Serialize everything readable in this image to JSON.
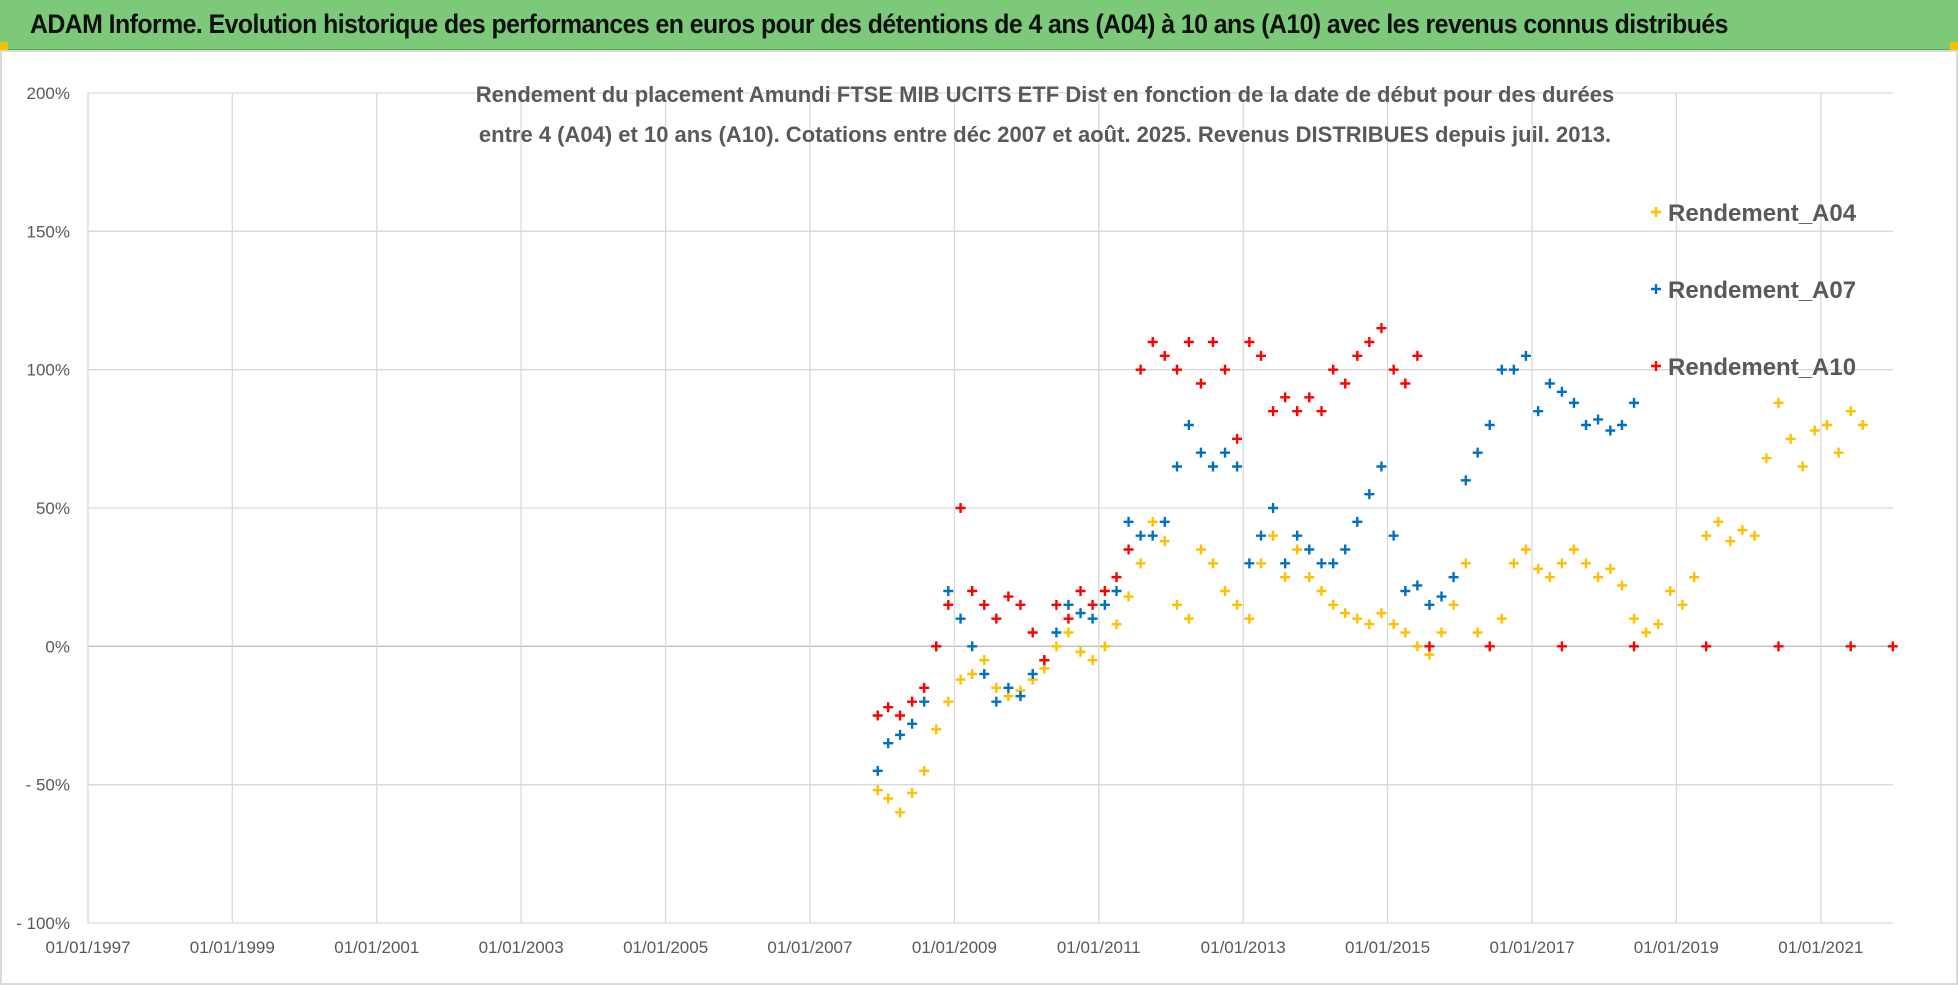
{
  "header": {
    "title": "ADAM Informe. Evolution historique des performances en euros pour des détentions de 4 ans (A04) à 10 ans (A10) avec les revenus connus distribués"
  },
  "chart_data": {
    "type": "scatter",
    "title_lines": [
      "Rendement du placement Amundi FTSE MIB UCITS ETF Dist en fonction de la date de début pour des durées",
      "entre 4 (A04) et 10 ans (A10). Cotations entre déc 2007 et août. 2025. Revenus DISTRIBUES depuis juil. 2013."
    ],
    "xlabel": "",
    "ylabel": "",
    "x_range": [
      "1997-01-01",
      "2022-01-01"
    ],
    "x_ticks": [
      "01/01/1997",
      "01/01/1999",
      "01/01/2001",
      "01/01/2003",
      "01/01/2005",
      "01/01/2007",
      "01/01/2009",
      "01/01/2011",
      "01/01/2013",
      "01/01/2015",
      "01/01/2017",
      "01/01/2019",
      "01/01/2021"
    ],
    "ylim": [
      -100,
      200
    ],
    "y_ticks": [
      {
        "value": 200,
        "label": "200%"
      },
      {
        "value": 150,
        "label": "150%"
      },
      {
        "value": 100,
        "label": "100%"
      },
      {
        "value": 50,
        "label": "50%"
      },
      {
        "value": 0,
        "label": "0%"
      },
      {
        "value": -50,
        "label": "- 50%"
      },
      {
        "value": -100,
        "label": "- 100%"
      }
    ],
    "grid": true,
    "legend_position": "top-right",
    "series": [
      {
        "name": "Rendement_A04",
        "color": "#ffc000",
        "marker": "plus",
        "points": [
          [
            "2007-12-10",
            -52
          ],
          [
            "2008-02-01",
            -55
          ],
          [
            "2008-04-01",
            -60
          ],
          [
            "2008-06-01",
            -53
          ],
          [
            "2008-08-01",
            -45
          ],
          [
            "2008-10-01",
            -30
          ],
          [
            "2008-12-01",
            -20
          ],
          [
            "2009-02-01",
            -12
          ],
          [
            "2009-04-01",
            -10
          ],
          [
            "2009-06-01",
            -5
          ],
          [
            "2009-08-01",
            -15
          ],
          [
            "2009-10-01",
            -18
          ],
          [
            "2009-12-01",
            -16
          ],
          [
            "2010-02-01",
            -12
          ],
          [
            "2010-04-01",
            -8
          ],
          [
            "2010-06-01",
            0
          ],
          [
            "2010-08-01",
            5
          ],
          [
            "2010-10-01",
            -2
          ],
          [
            "2010-12-01",
            -5
          ],
          [
            "2011-02-01",
            0
          ],
          [
            "2011-04-01",
            8
          ],
          [
            "2011-06-01",
            18
          ],
          [
            "2011-08-01",
            30
          ],
          [
            "2011-10-01",
            45
          ],
          [
            "2011-12-01",
            38
          ],
          [
            "2012-02-01",
            15
          ],
          [
            "2012-04-01",
            10
          ],
          [
            "2012-06-01",
            35
          ],
          [
            "2012-08-01",
            30
          ],
          [
            "2012-10-01",
            20
          ],
          [
            "2012-12-01",
            15
          ],
          [
            "2013-02-01",
            10
          ],
          [
            "2013-04-01",
            30
          ],
          [
            "2013-06-01",
            40
          ],
          [
            "2013-08-01",
            25
          ],
          [
            "2013-10-01",
            35
          ],
          [
            "2013-12-01",
            25
          ],
          [
            "2014-02-01",
            20
          ],
          [
            "2014-04-01",
            15
          ],
          [
            "2014-06-01",
            12
          ],
          [
            "2014-08-01",
            10
          ],
          [
            "2014-10-01",
            8
          ],
          [
            "2014-12-01",
            12
          ],
          [
            "2015-02-01",
            8
          ],
          [
            "2015-04-01",
            5
          ],
          [
            "2015-06-01",
            0
          ],
          [
            "2015-08-01",
            -3
          ],
          [
            "2015-10-01",
            5
          ],
          [
            "2015-12-01",
            15
          ],
          [
            "2016-02-01",
            30
          ],
          [
            "2016-04-01",
            5
          ],
          [
            "2016-06-01",
            0
          ],
          [
            "2016-08-01",
            10
          ],
          [
            "2016-10-01",
            30
          ],
          [
            "2016-12-01",
            35
          ],
          [
            "2017-02-01",
            28
          ],
          [
            "2017-04-01",
            25
          ],
          [
            "2017-06-01",
            30
          ],
          [
            "2017-08-01",
            35
          ],
          [
            "2017-10-01",
            30
          ],
          [
            "2017-12-01",
            25
          ],
          [
            "2018-02-01",
            28
          ],
          [
            "2018-04-01",
            22
          ],
          [
            "2018-06-01",
            10
          ],
          [
            "2018-08-01",
            5
          ],
          [
            "2018-10-01",
            8
          ],
          [
            "2018-12-01",
            20
          ],
          [
            "2019-02-01",
            15
          ],
          [
            "2019-04-01",
            25
          ],
          [
            "2019-06-01",
            40
          ],
          [
            "2019-08-01",
            45
          ],
          [
            "2019-10-01",
            38
          ],
          [
            "2019-12-01",
            42
          ],
          [
            "2020-02-01",
            40
          ],
          [
            "2020-04-01",
            68
          ],
          [
            "2020-06-01",
            88
          ],
          [
            "2020-08-01",
            75
          ],
          [
            "2020-10-01",
            65
          ],
          [
            "2020-12-01",
            78
          ],
          [
            "2021-02-01",
            80
          ],
          [
            "2021-04-01",
            70
          ],
          [
            "2021-06-01",
            85
          ],
          [
            "2021-08-01",
            80
          ]
        ]
      },
      {
        "name": "Rendement_A07",
        "color": "#0070c0",
        "marker": "plus",
        "points": [
          [
            "2007-12-10",
            -45
          ],
          [
            "2008-02-01",
            -35
          ],
          [
            "2008-04-01",
            -32
          ],
          [
            "2008-06-01",
            -28
          ],
          [
            "2008-08-01",
            -20
          ],
          [
            "2008-10-01",
            0
          ],
          [
            "2008-12-01",
            20
          ],
          [
            "2009-02-01",
            10
          ],
          [
            "2009-04-01",
            0
          ],
          [
            "2009-06-01",
            -10
          ],
          [
            "2009-08-01",
            -20
          ],
          [
            "2009-10-01",
            -15
          ],
          [
            "2009-12-01",
            -18
          ],
          [
            "2010-02-01",
            -10
          ],
          [
            "2010-04-01",
            -5
          ],
          [
            "2010-06-01",
            5
          ],
          [
            "2010-08-01",
            15
          ],
          [
            "2010-10-01",
            12
          ],
          [
            "2010-12-01",
            10
          ],
          [
            "2011-02-01",
            15
          ],
          [
            "2011-04-01",
            20
          ],
          [
            "2011-06-01",
            45
          ],
          [
            "2011-08-01",
            40
          ],
          [
            "2011-10-01",
            40
          ],
          [
            "2011-12-01",
            45
          ],
          [
            "2012-02-01",
            65
          ],
          [
            "2012-04-01",
            80
          ],
          [
            "2012-06-01",
            70
          ],
          [
            "2012-08-01",
            65
          ],
          [
            "2012-10-01",
            70
          ],
          [
            "2012-12-01",
            65
          ],
          [
            "2013-02-01",
            30
          ],
          [
            "2013-04-01",
            40
          ],
          [
            "2013-06-01",
            50
          ],
          [
            "2013-08-01",
            30
          ],
          [
            "2013-10-01",
            40
          ],
          [
            "2013-12-01",
            35
          ],
          [
            "2014-02-01",
            30
          ],
          [
            "2014-04-01",
            30
          ],
          [
            "2014-06-01",
            35
          ],
          [
            "2014-08-01",
            45
          ],
          [
            "2014-10-01",
            55
          ],
          [
            "2014-12-01",
            65
          ],
          [
            "2015-02-01",
            40
          ],
          [
            "2015-04-01",
            20
          ],
          [
            "2015-06-01",
            22
          ],
          [
            "2015-08-01",
            15
          ],
          [
            "2015-10-01",
            18
          ],
          [
            "2015-12-01",
            25
          ],
          [
            "2016-02-01",
            60
          ],
          [
            "2016-04-01",
            70
          ],
          [
            "2016-06-01",
            80
          ],
          [
            "2016-08-01",
            100
          ],
          [
            "2016-10-01",
            100
          ],
          [
            "2016-12-01",
            105
          ],
          [
            "2017-02-01",
            85
          ],
          [
            "2017-04-01",
            95
          ],
          [
            "2017-06-01",
            92
          ],
          [
            "2017-08-01",
            88
          ],
          [
            "2017-10-01",
            80
          ],
          [
            "2017-12-01",
            82
          ],
          [
            "2018-02-01",
            78
          ],
          [
            "2018-04-01",
            80
          ],
          [
            "2018-06-01",
            88
          ]
        ]
      },
      {
        "name": "Rendement_A10",
        "color": "#ff0000",
        "marker": "plus",
        "points": [
          [
            "2007-12-10",
            -25
          ],
          [
            "2008-02-01",
            -22
          ],
          [
            "2008-04-01",
            -25
          ],
          [
            "2008-06-01",
            -20
          ],
          [
            "2008-08-01",
            -15
          ],
          [
            "2008-10-01",
            0
          ],
          [
            "2008-12-01",
            15
          ],
          [
            "2009-02-01",
            50
          ],
          [
            "2009-04-01",
            20
          ],
          [
            "2009-06-01",
            15
          ],
          [
            "2009-08-01",
            10
          ],
          [
            "2009-10-01",
            18
          ],
          [
            "2009-12-01",
            15
          ],
          [
            "2010-02-01",
            5
          ],
          [
            "2010-04-01",
            -5
          ],
          [
            "2010-06-01",
            15
          ],
          [
            "2010-08-01",
            10
          ],
          [
            "2010-10-01",
            20
          ],
          [
            "2010-12-01",
            15
          ],
          [
            "2011-02-01",
            20
          ],
          [
            "2011-04-01",
            25
          ],
          [
            "2011-06-01",
            35
          ],
          [
            "2011-08-01",
            100
          ],
          [
            "2011-10-01",
            110
          ],
          [
            "2011-12-01",
            105
          ],
          [
            "2012-02-01",
            100
          ],
          [
            "2012-04-01",
            110
          ],
          [
            "2012-06-01",
            95
          ],
          [
            "2012-08-01",
            110
          ],
          [
            "2012-10-01",
            100
          ],
          [
            "2012-12-01",
            75
          ],
          [
            "2013-02-01",
            110
          ],
          [
            "2013-04-01",
            105
          ],
          [
            "2013-06-01",
            85
          ],
          [
            "2013-08-01",
            90
          ],
          [
            "2013-10-01",
            85
          ],
          [
            "2013-12-01",
            90
          ],
          [
            "2014-02-01",
            85
          ],
          [
            "2014-04-01",
            100
          ],
          [
            "2014-06-01",
            95
          ],
          [
            "2014-08-01",
            105
          ],
          [
            "2014-10-01",
            110
          ],
          [
            "2014-12-01",
            115
          ],
          [
            "2015-02-01",
            100
          ],
          [
            "2015-04-01",
            95
          ],
          [
            "2015-06-01",
            105
          ],
          [
            "2015-08-01",
            0
          ],
          [
            "2016-06-01",
            0
          ],
          [
            "2017-06-01",
            0
          ],
          [
            "2018-06-01",
            0
          ],
          [
            "2019-06-01",
            0
          ],
          [
            "2020-06-01",
            0
          ],
          [
            "2021-06-01",
            0
          ],
          [
            "2021-12-31",
            0
          ]
        ]
      }
    ]
  }
}
